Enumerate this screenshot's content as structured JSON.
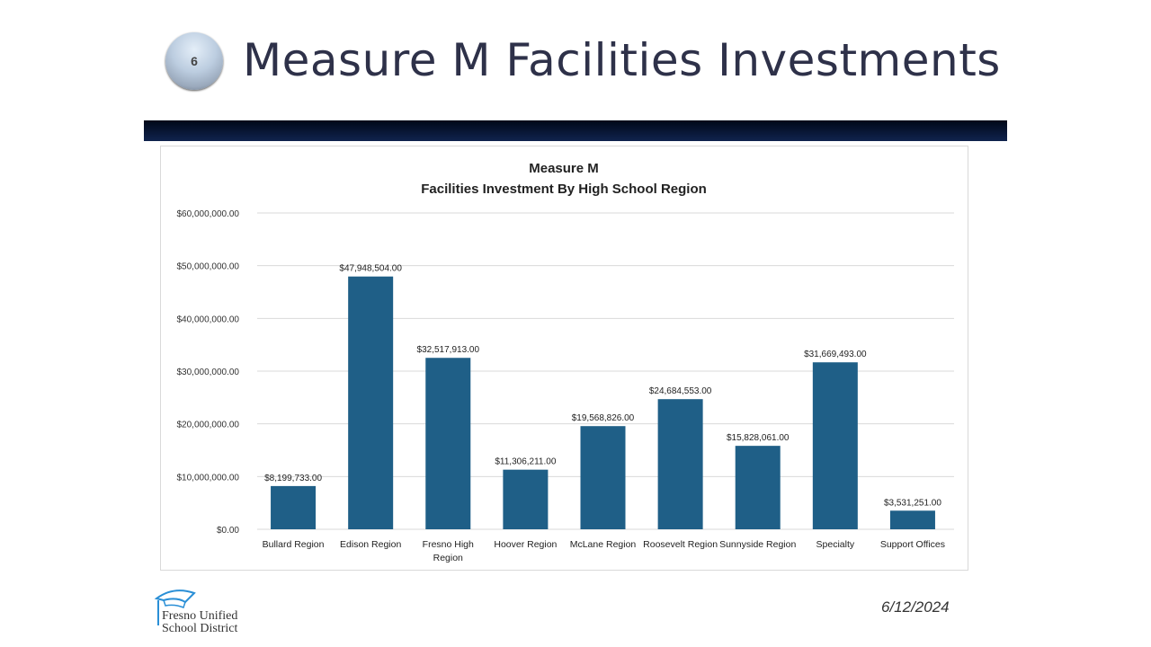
{
  "slide": {
    "number": "6",
    "title": "Measure M Facilities Investments",
    "date": "6/12/2024",
    "logo_text_line1": "Fresno Unified",
    "logo_text_line2": "School District"
  },
  "colors": {
    "bar": "#1f5f87",
    "band": "#0a1a3e"
  },
  "chart_data": {
    "type": "bar",
    "title": "Measure M",
    "subtitle": "Facilities Investment By High School Region",
    "categories": [
      "Bullard Region",
      "Edison Region",
      "Fresno High Region",
      "Hoover Region",
      "McLane Region",
      "Roosevelt Region",
      "Sunnyside Region",
      "Specialty",
      "Support Offices"
    ],
    "values": [
      8199733,
      47948504,
      32517913,
      11306211,
      19568826,
      24684553,
      15828061,
      31669493,
      3531251
    ],
    "data_labels": [
      "$8,199,733.00",
      "$47,948,504.00",
      "$32,517,913.00",
      "$11,306,211.00",
      "$19,568,826.00",
      "$24,684,553.00",
      "$15,828,061.00",
      "$31,669,493.00",
      "$3,531,251.00"
    ],
    "yticks": [
      0,
      10000000,
      20000000,
      30000000,
      40000000,
      50000000,
      60000000
    ],
    "ytick_labels": [
      "$0.00",
      "$10,000,000.00",
      "$20,000,000.00",
      "$30,000,000.00",
      "$40,000,000.00",
      "$50,000,000.00",
      "$60,000,000.00"
    ],
    "ylim": [
      0,
      60000000
    ],
    "xlabel": "",
    "ylabel": "",
    "grid": true,
    "legend": "none"
  }
}
